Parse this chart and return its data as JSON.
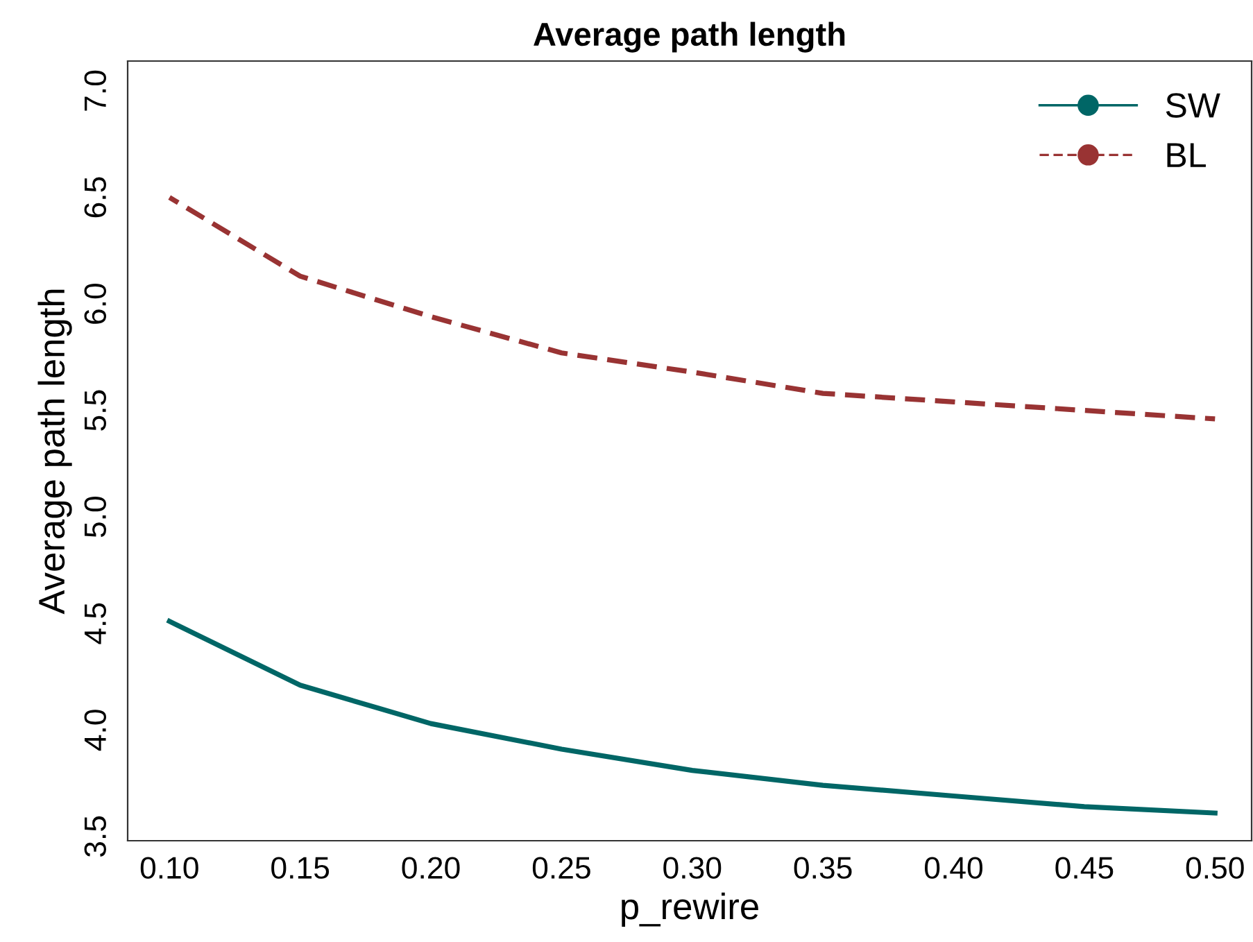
{
  "chart_data": {
    "type": "line",
    "title": "Average path length",
    "xlabel": "p_rewire",
    "ylabel": "Average path length",
    "x": [
      0.1,
      0.15,
      0.2,
      0.25,
      0.3,
      0.35,
      0.4,
      0.45,
      0.5
    ],
    "series": [
      {
        "name": "SW",
        "color": "#006666",
        "line_style": "solid",
        "values": [
          4.51,
          4.21,
          4.03,
          3.91,
          3.81,
          3.74,
          3.69,
          3.64,
          3.61
        ]
      },
      {
        "name": "BL",
        "color": "#993333",
        "line_style": "dashed",
        "values": [
          6.5,
          6.13,
          5.94,
          5.77,
          5.68,
          5.58,
          5.54,
          5.5,
          5.46
        ]
      }
    ],
    "xlim": [
      0.084,
      0.514
    ],
    "ylim": [
      3.48,
      7.14
    ],
    "xticks": [
      {
        "value": 0.1,
        "label": "0.10"
      },
      {
        "value": 0.15,
        "label": "0.15"
      },
      {
        "value": 0.2,
        "label": "0.20"
      },
      {
        "value": 0.25,
        "label": "0.25"
      },
      {
        "value": 0.3,
        "label": "0.30"
      },
      {
        "value": 0.35,
        "label": "0.35"
      },
      {
        "value": 0.4,
        "label": "0.40"
      },
      {
        "value": 0.45,
        "label": "0.45"
      },
      {
        "value": 0.5,
        "label": "0.50"
      }
    ],
    "yticks": [
      {
        "value": 3.5,
        "label": "3.5"
      },
      {
        "value": 4.0,
        "label": "4.0"
      },
      {
        "value": 4.5,
        "label": "4.5"
      },
      {
        "value": 5.0,
        "label": "5.0"
      },
      {
        "value": 5.5,
        "label": "5.5"
      },
      {
        "value": 6.0,
        "label": "6.0"
      },
      {
        "value": 6.5,
        "label": "6.5"
      },
      {
        "value": 7.0,
        "label": "7.0"
      }
    ],
    "grid": false,
    "legend": "top right"
  }
}
